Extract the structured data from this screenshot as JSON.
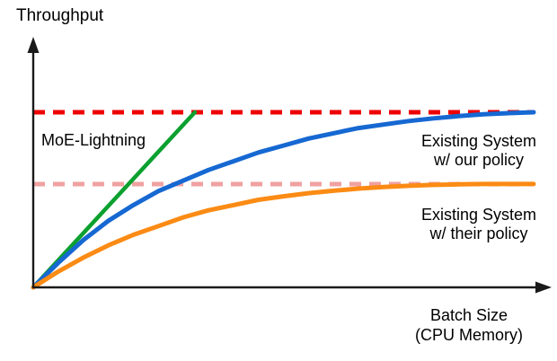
{
  "labels": {
    "y_axis": "Throughput",
    "x_axis_line1": "Batch Size",
    "x_axis_line2": "(CPU Memory)",
    "moe": "MoE-Lightning",
    "our_policy_line1": "Existing System",
    "our_policy_line2": "w/ our policy",
    "their_policy_line1": "Existing System",
    "their_policy_line2": "w/ their policy"
  },
  "colors": {
    "moe_green": "#0ca02f",
    "our_policy_blue": "#1668d2",
    "their_policy_orange": "#fb8b14",
    "ceiling_red": "#ee0000",
    "ceiling_pink": "#f0a1a1",
    "axis_black": "#1a1a1a"
  },
  "chart_data": {
    "type": "line",
    "title": "",
    "xlabel": "Batch Size (CPU Memory)",
    "ylabel": "Throughput",
    "axes_numeric": false,
    "grid": false,
    "x_range": [
      0,
      100
    ],
    "y_range": [
      0,
      110
    ],
    "legend_position": "inline-annotations",
    "series": [
      {
        "name": "MoE-Lightning",
        "color": "#0ca02f",
        "style": "solid",
        "width": 4.5,
        "x": [
          0,
          32.3
        ],
        "y": [
          0,
          100
        ]
      },
      {
        "name": "Existing System w/ our policy",
        "color": "#1668d2",
        "style": "solid",
        "width": 5,
        "x": [
          0,
          5,
          10,
          15,
          20,
          25,
          30,
          35,
          40,
          45,
          50,
          55,
          60,
          65,
          70,
          75,
          80,
          85,
          90,
          95,
          100
        ],
        "y": [
          0,
          14,
          27,
          38,
          47,
          55,
          61,
          67,
          72,
          77,
          81,
          85,
          88,
          91,
          93,
          95,
          96.5,
          97.8,
          98.8,
          99.5,
          100
        ]
      },
      {
        "name": "Existing System w/ their policy",
        "color": "#fb8b14",
        "style": "solid",
        "width": 5,
        "x": [
          0,
          5,
          10,
          15,
          20,
          25,
          30,
          35,
          40,
          45,
          50,
          55,
          60,
          65,
          70,
          75,
          80,
          85,
          90,
          95,
          100
        ],
        "y": [
          0,
          9,
          17,
          24,
          30,
          35,
          40,
          44,
          47,
          50,
          52,
          53.8,
          55.2,
          56.4,
          57.3,
          58,
          58.5,
          58.8,
          59,
          59,
          59
        ]
      }
    ],
    "reference_lines": [
      {
        "name": "max-throughput-ceiling",
        "color": "#ee0000",
        "style": "dashed",
        "width": 5,
        "y": 100,
        "x_start": 0,
        "x_end": 100
      },
      {
        "name": "their-policy-ceiling",
        "color": "#f0a1a1",
        "style": "dashed",
        "width": 5,
        "y": 59,
        "x_start": 0,
        "x_end": 100
      }
    ],
    "annotations": [
      {
        "text": "MoE-Lightning",
        "attached_to": "MoE-Lightning"
      },
      {
        "text": "Existing System w/ our policy",
        "attached_to": "Existing System w/ our policy"
      },
      {
        "text": "Existing System w/ their policy",
        "attached_to": "Existing System w/ their policy"
      }
    ]
  }
}
